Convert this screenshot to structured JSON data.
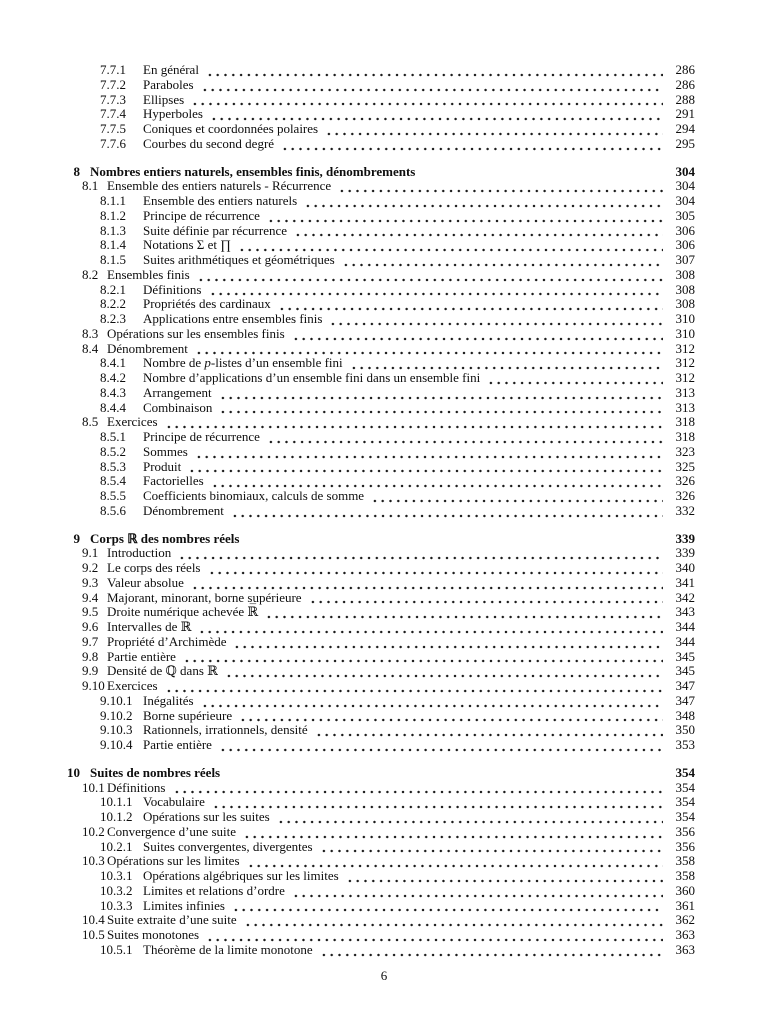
{
  "page": {
    "footer_page_number": "6"
  },
  "toc": {
    "entries": [
      {
        "level": "subsection",
        "number": "7.7.1",
        "title": "En général",
        "page": "286"
      },
      {
        "level": "subsection",
        "number": "7.7.2",
        "title": "Paraboles",
        "page": "286"
      },
      {
        "level": "subsection",
        "number": "7.7.3",
        "title": "Ellipses",
        "page": "288"
      },
      {
        "level": "subsection",
        "number": "7.7.4",
        "title": "Hyperboles",
        "page": "291"
      },
      {
        "level": "subsection",
        "number": "7.7.5",
        "title": "Coniques et coordonnées polaires",
        "page": "294"
      },
      {
        "level": "subsection",
        "number": "7.7.6",
        "title": "Courbes du second degré",
        "page": "295"
      },
      {
        "level": "chapter",
        "number": "8",
        "title": "Nombres entiers naturels, ensembles finis, dénombrements",
        "page": "304"
      },
      {
        "level": "section",
        "number": "8.1",
        "title": "Ensemble des entiers naturels - Récurrence",
        "page": "304"
      },
      {
        "level": "subsection",
        "number": "8.1.1",
        "title": "Ensemble des entiers naturels",
        "page": "304"
      },
      {
        "level": "subsection",
        "number": "8.1.2",
        "title": "Principe de récurrence",
        "page": "305"
      },
      {
        "level": "subsection",
        "number": "8.1.3",
        "title": "Suite définie par récurrence",
        "page": "306"
      },
      {
        "level": "subsection",
        "number": "8.1.4",
        "title": "Notations Σ et ∏",
        "page": "306"
      },
      {
        "level": "subsection",
        "number": "8.1.5",
        "title": "Suites arithmétiques et géométriques",
        "page": "307"
      },
      {
        "level": "section",
        "number": "8.2",
        "title": "Ensembles finis",
        "page": "308"
      },
      {
        "level": "subsection",
        "number": "8.2.1",
        "title": "Définitions",
        "page": "308"
      },
      {
        "level": "subsection",
        "number": "8.2.2",
        "title": "Propriétés des cardinaux",
        "page": "308"
      },
      {
        "level": "subsection",
        "number": "8.2.3",
        "title": "Applications entre ensembles finis",
        "page": "310"
      },
      {
        "level": "section",
        "number": "8.3",
        "title": "Opérations sur les ensembles finis",
        "page": "310"
      },
      {
        "level": "section",
        "number": "8.4",
        "title": "Dénombrement",
        "page": "312"
      },
      {
        "level": "subsection",
        "number": "8.4.1",
        "title": "Nombre de *p*-listes d’un ensemble fini",
        "page": "312"
      },
      {
        "level": "subsection",
        "number": "8.4.2",
        "title": "Nombre d’applications d’un ensemble fini dans un ensemble fini",
        "page": "312"
      },
      {
        "level": "subsection",
        "number": "8.4.3",
        "title": "Arrangement",
        "page": "313"
      },
      {
        "level": "subsection",
        "number": "8.4.4",
        "title": "Combinaison",
        "page": "313"
      },
      {
        "level": "section",
        "number": "8.5",
        "title": "Exercices",
        "page": "318"
      },
      {
        "level": "subsection",
        "number": "8.5.1",
        "title": "Principe de récurrence",
        "page": "318"
      },
      {
        "level": "subsection",
        "number": "8.5.2",
        "title": "Sommes",
        "page": "323"
      },
      {
        "level": "subsection",
        "number": "8.5.3",
        "title": "Produit",
        "page": "325"
      },
      {
        "level": "subsection",
        "number": "8.5.4",
        "title": "Factorielles",
        "page": "326"
      },
      {
        "level": "subsection",
        "number": "8.5.5",
        "title": "Coefficients binomiaux, calculs de somme",
        "page": "326"
      },
      {
        "level": "subsection",
        "number": "8.5.6",
        "title": "Dénombrement",
        "page": "332"
      },
      {
        "level": "chapter",
        "number": "9",
        "title": "Corps ℝ des nombres réels",
        "page": "339"
      },
      {
        "level": "section",
        "number": "9.1",
        "title": "Introduction",
        "page": "339"
      },
      {
        "level": "section",
        "number": "9.2",
        "title": "Le corps des réels",
        "page": "340"
      },
      {
        "level": "section",
        "number": "9.3",
        "title": "Valeur absolue",
        "page": "341"
      },
      {
        "level": "section",
        "number": "9.4",
        "title": "Majorant, minorant, borne supérieure",
        "page": "342"
      },
      {
        "level": "section",
        "number": "9.5",
        "title": "Droite numérique achevée ℝ̅",
        "page": "343"
      },
      {
        "level": "section",
        "number": "9.6",
        "title": "Intervalles de ℝ",
        "page": "344"
      },
      {
        "level": "section",
        "number": "9.7",
        "title": "Propriété d’Archimède",
        "page": "344"
      },
      {
        "level": "section",
        "number": "9.8",
        "title": "Partie entière",
        "page": "345"
      },
      {
        "level": "section",
        "number": "9.9",
        "title": "Densité de ℚ dans ℝ",
        "page": "345"
      },
      {
        "level": "section",
        "number": "9.10",
        "title": "Exercices",
        "page": "347"
      },
      {
        "level": "subsection",
        "number": "9.10.1",
        "title": "Inégalités",
        "page": "347"
      },
      {
        "level": "subsection",
        "number": "9.10.2",
        "title": "Borne supérieure",
        "page": "348"
      },
      {
        "level": "subsection",
        "number": "9.10.3",
        "title": "Rationnels, irrationnels, densité",
        "page": "350"
      },
      {
        "level": "subsection",
        "number": "9.10.4",
        "title": "Partie entière",
        "page": "353"
      },
      {
        "level": "chapter",
        "number": "10",
        "title": "Suites de nombres réels",
        "page": "354"
      },
      {
        "level": "section",
        "number": "10.1",
        "title": "Définitions",
        "page": "354"
      },
      {
        "level": "subsection",
        "number": "10.1.1",
        "title": "Vocabulaire",
        "page": "354"
      },
      {
        "level": "subsection",
        "number": "10.1.2",
        "title": "Opérations sur les suites",
        "page": "354"
      },
      {
        "level": "section",
        "number": "10.2",
        "title": "Convergence d’une suite",
        "page": "356"
      },
      {
        "level": "subsection",
        "number": "10.2.1",
        "title": "Suites convergentes, divergentes",
        "page": "356"
      },
      {
        "level": "section",
        "number": "10.3",
        "title": "Opérations sur les limites",
        "page": "358"
      },
      {
        "level": "subsection",
        "number": "10.3.1",
        "title": "Opérations algébriques sur les limites",
        "page": "358"
      },
      {
        "level": "subsection",
        "number": "10.3.2",
        "title": "Limites et relations d’ordre",
        "page": "360"
      },
      {
        "level": "subsection",
        "number": "10.3.3",
        "title": "Limites infinies",
        "page": "361"
      },
      {
        "level": "section",
        "number": "10.4",
        "title": "Suite extraite d’une suite",
        "page": "362"
      },
      {
        "level": "section",
        "number": "10.5",
        "title": "Suites monotones",
        "page": "363"
      },
      {
        "level": "subsection",
        "number": "10.5.1",
        "title": "Théorème de la limite monotone",
        "page": "363"
      }
    ]
  }
}
